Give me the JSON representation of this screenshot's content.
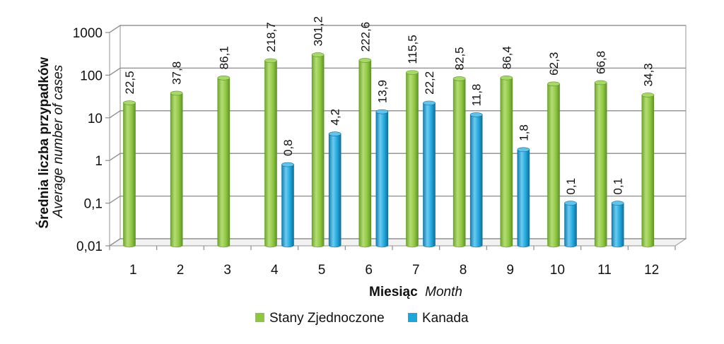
{
  "chart_data": {
    "type": "bar",
    "y_scale": "log",
    "ylim": [
      0.01,
      1000
    ],
    "y_ticks": [
      "0,01",
      "0,1",
      "1",
      "10",
      "100",
      "1000"
    ],
    "ylabel": {
      "main": "Średnia liczba przypadków",
      "sub": "Average number of cases"
    },
    "xlabel": {
      "main": "Miesiąc",
      "sub": "Month"
    },
    "categories": [
      "1",
      "2",
      "3",
      "4",
      "5",
      "6",
      "7",
      "8",
      "9",
      "10",
      "11",
      "12"
    ],
    "series": [
      {
        "name": "Stany Zjednoczone",
        "color": "#8DC63F",
        "values": [
          22.5,
          37.8,
          86.1,
          218.7,
          301.2,
          222.6,
          115.5,
          82.5,
          86.4,
          62.3,
          66.8,
          34.3
        ],
        "labels": [
          "22,5",
          "37,8",
          "86,1",
          "218,7",
          "301,2",
          "222,6",
          "115,5",
          "82,5",
          "86,4",
          "62,3",
          "66,8",
          "34,3"
        ]
      },
      {
        "name": "Kanada",
        "color": "#1EA6DB",
        "values": [
          null,
          null,
          null,
          0.8,
          4.2,
          13.9,
          22.2,
          11.8,
          1.8,
          0.1,
          0.1,
          null
        ],
        "labels": [
          "",
          "",
          "",
          "0,8",
          "4,2",
          "13,9",
          "22,2",
          "11,8",
          "1,8",
          "0,1",
          "0,1",
          ""
        ]
      }
    ],
    "grid": true,
    "legend_position": "bottom"
  }
}
